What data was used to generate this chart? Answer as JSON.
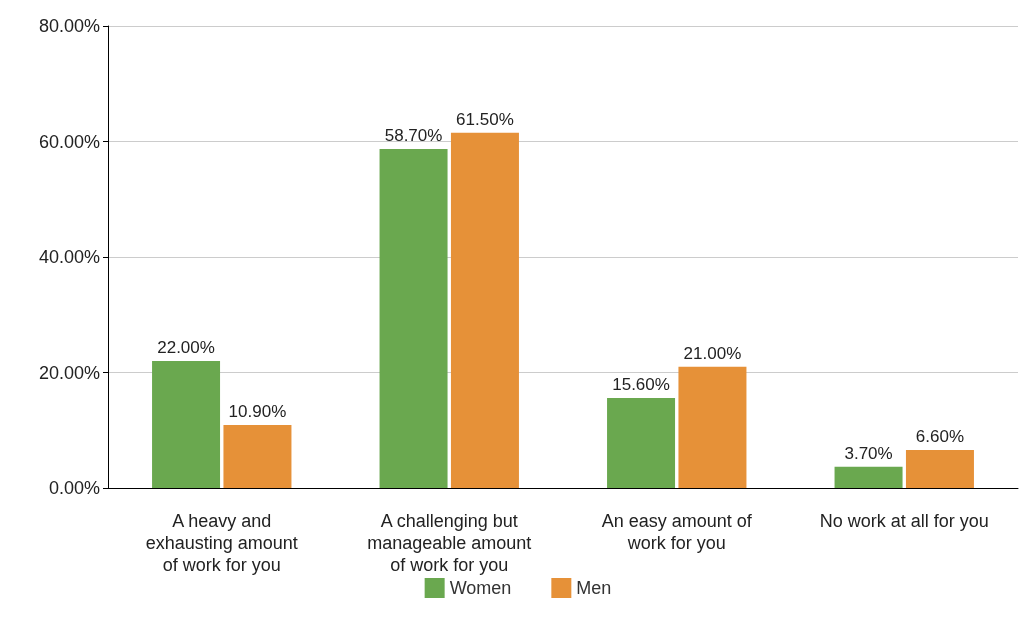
{
  "chart_data": {
    "type": "bar",
    "categories": [
      "A heavy and\nexhausting amount\nof work for you",
      "A challenging but\nmanageable amount\nof work for you",
      "An easy amount of\nwork for you",
      "No work at all for you"
    ],
    "series": [
      {
        "name": "Women",
        "color": "#6aa84f",
        "values": [
          22.0,
          58.7,
          15.6,
          3.7
        ],
        "value_labels": [
          "22.00%",
          "58.70%",
          "15.60%",
          "3.70%"
        ]
      },
      {
        "name": "Men",
        "color": "#e69138",
        "values": [
          10.9,
          61.5,
          21.0,
          6.6
        ],
        "value_labels": [
          "10.90%",
          "61.50%",
          "21.00%",
          "6.60%"
        ]
      }
    ],
    "ylim": [
      0,
      80
    ],
    "yticks": [
      {
        "value": 0,
        "label": "0.00%"
      },
      {
        "value": 20,
        "label": "20.00%"
      },
      {
        "value": 40,
        "label": "40.00%"
      },
      {
        "value": 60,
        "label": "60.00%"
      },
      {
        "value": 80,
        "label": "80.00%"
      }
    ],
    "grid": "y",
    "legend": "bottom"
  }
}
